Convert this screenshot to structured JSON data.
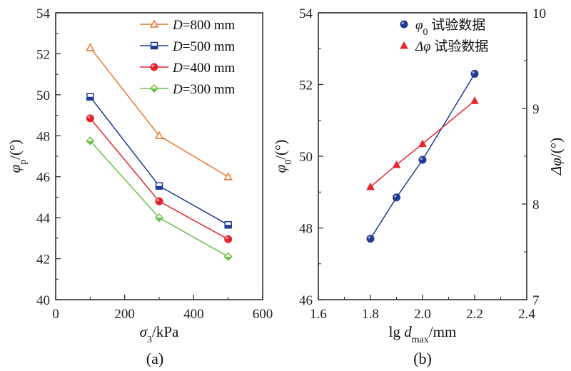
{
  "chart_data": [
    {
      "type": "line",
      "panel_label": "(a)",
      "xlabel": {
        "main": "σ",
        "sub": "3",
        "rest": "/kPa"
      },
      "ylabel": {
        "main": "φ",
        "sub": "p",
        "rest": "/(°)"
      },
      "xlim": [
        0,
        600
      ],
      "ylim": [
        40,
        54
      ],
      "xticks": [
        "0",
        "200",
        "400",
        "600"
      ],
      "yticks": [
        "40",
        "42",
        "44",
        "46",
        "48",
        "50",
        "52",
        "54"
      ],
      "legend_position": "top-right",
      "x": [
        100,
        300,
        500
      ],
      "series": [
        {
          "name": "D=800 mm",
          "label_main": "D",
          "label_rest": "=800 mm",
          "color": "#e8772e",
          "marker": "triangle-open",
          "values": [
            52.3,
            48.0,
            46.0
          ]
        },
        {
          "name": "D=500 mm",
          "label_main": "D",
          "label_rest": "=500 mm",
          "color": "#1f3a93",
          "marker": "square-half",
          "values": [
            49.9,
            45.55,
            43.65
          ]
        },
        {
          "name": "D=400 mm",
          "label_main": "D",
          "label_rest": "=400 mm",
          "color": "#e3262e",
          "marker": "circle",
          "values": [
            48.85,
            44.8,
            42.95
          ]
        },
        {
          "name": "D=300 mm",
          "label_main": "D",
          "label_rest": "=300 mm",
          "color": "#6cc04a",
          "marker": "diamond-half",
          "values": [
            47.75,
            44.0,
            42.1
          ]
        }
      ]
    },
    {
      "type": "scatter",
      "panel_label": "(b)",
      "xlabel": {
        "main": "lg ",
        "italic": "d",
        "sub": "max",
        "rest": "/mm"
      },
      "ylabel_left": {
        "main": "φ",
        "sub": "0",
        "rest": "/(°)"
      },
      "ylabel_right": {
        "main": "Δφ",
        "rest": "/(°)"
      },
      "xlim": [
        1.6,
        2.4
      ],
      "ylim_left": [
        46,
        54
      ],
      "ylim_right": [
        7,
        10
      ],
      "xticks": [
        "1.6",
        "1.8",
        "2.0",
        "2.2",
        "2.4"
      ],
      "yticks_left": [
        "46",
        "48",
        "50",
        "52",
        "54"
      ],
      "yticks_right": [
        "7",
        "8",
        "9",
        "10"
      ],
      "legend_position": "top-right",
      "x": [
        1.8,
        1.9,
        2.0,
        2.2
      ],
      "series": [
        {
          "name": "φ0 试验数据",
          "label_main": "φ",
          "label_sub": "0",
          "label_rest": " 试验数据",
          "axis": "left",
          "color": "#1f3a93",
          "marker": "circle",
          "values": [
            47.7,
            48.85,
            49.9,
            52.3
          ]
        },
        {
          "name": "Δφ 试验数据",
          "label_main": "Δφ",
          "label_rest": " 试验数据",
          "axis": "right",
          "color": "#e3262e",
          "marker": "triangle",
          "values": [
            8.18,
            8.41,
            8.63,
            9.08
          ]
        }
      ]
    }
  ]
}
